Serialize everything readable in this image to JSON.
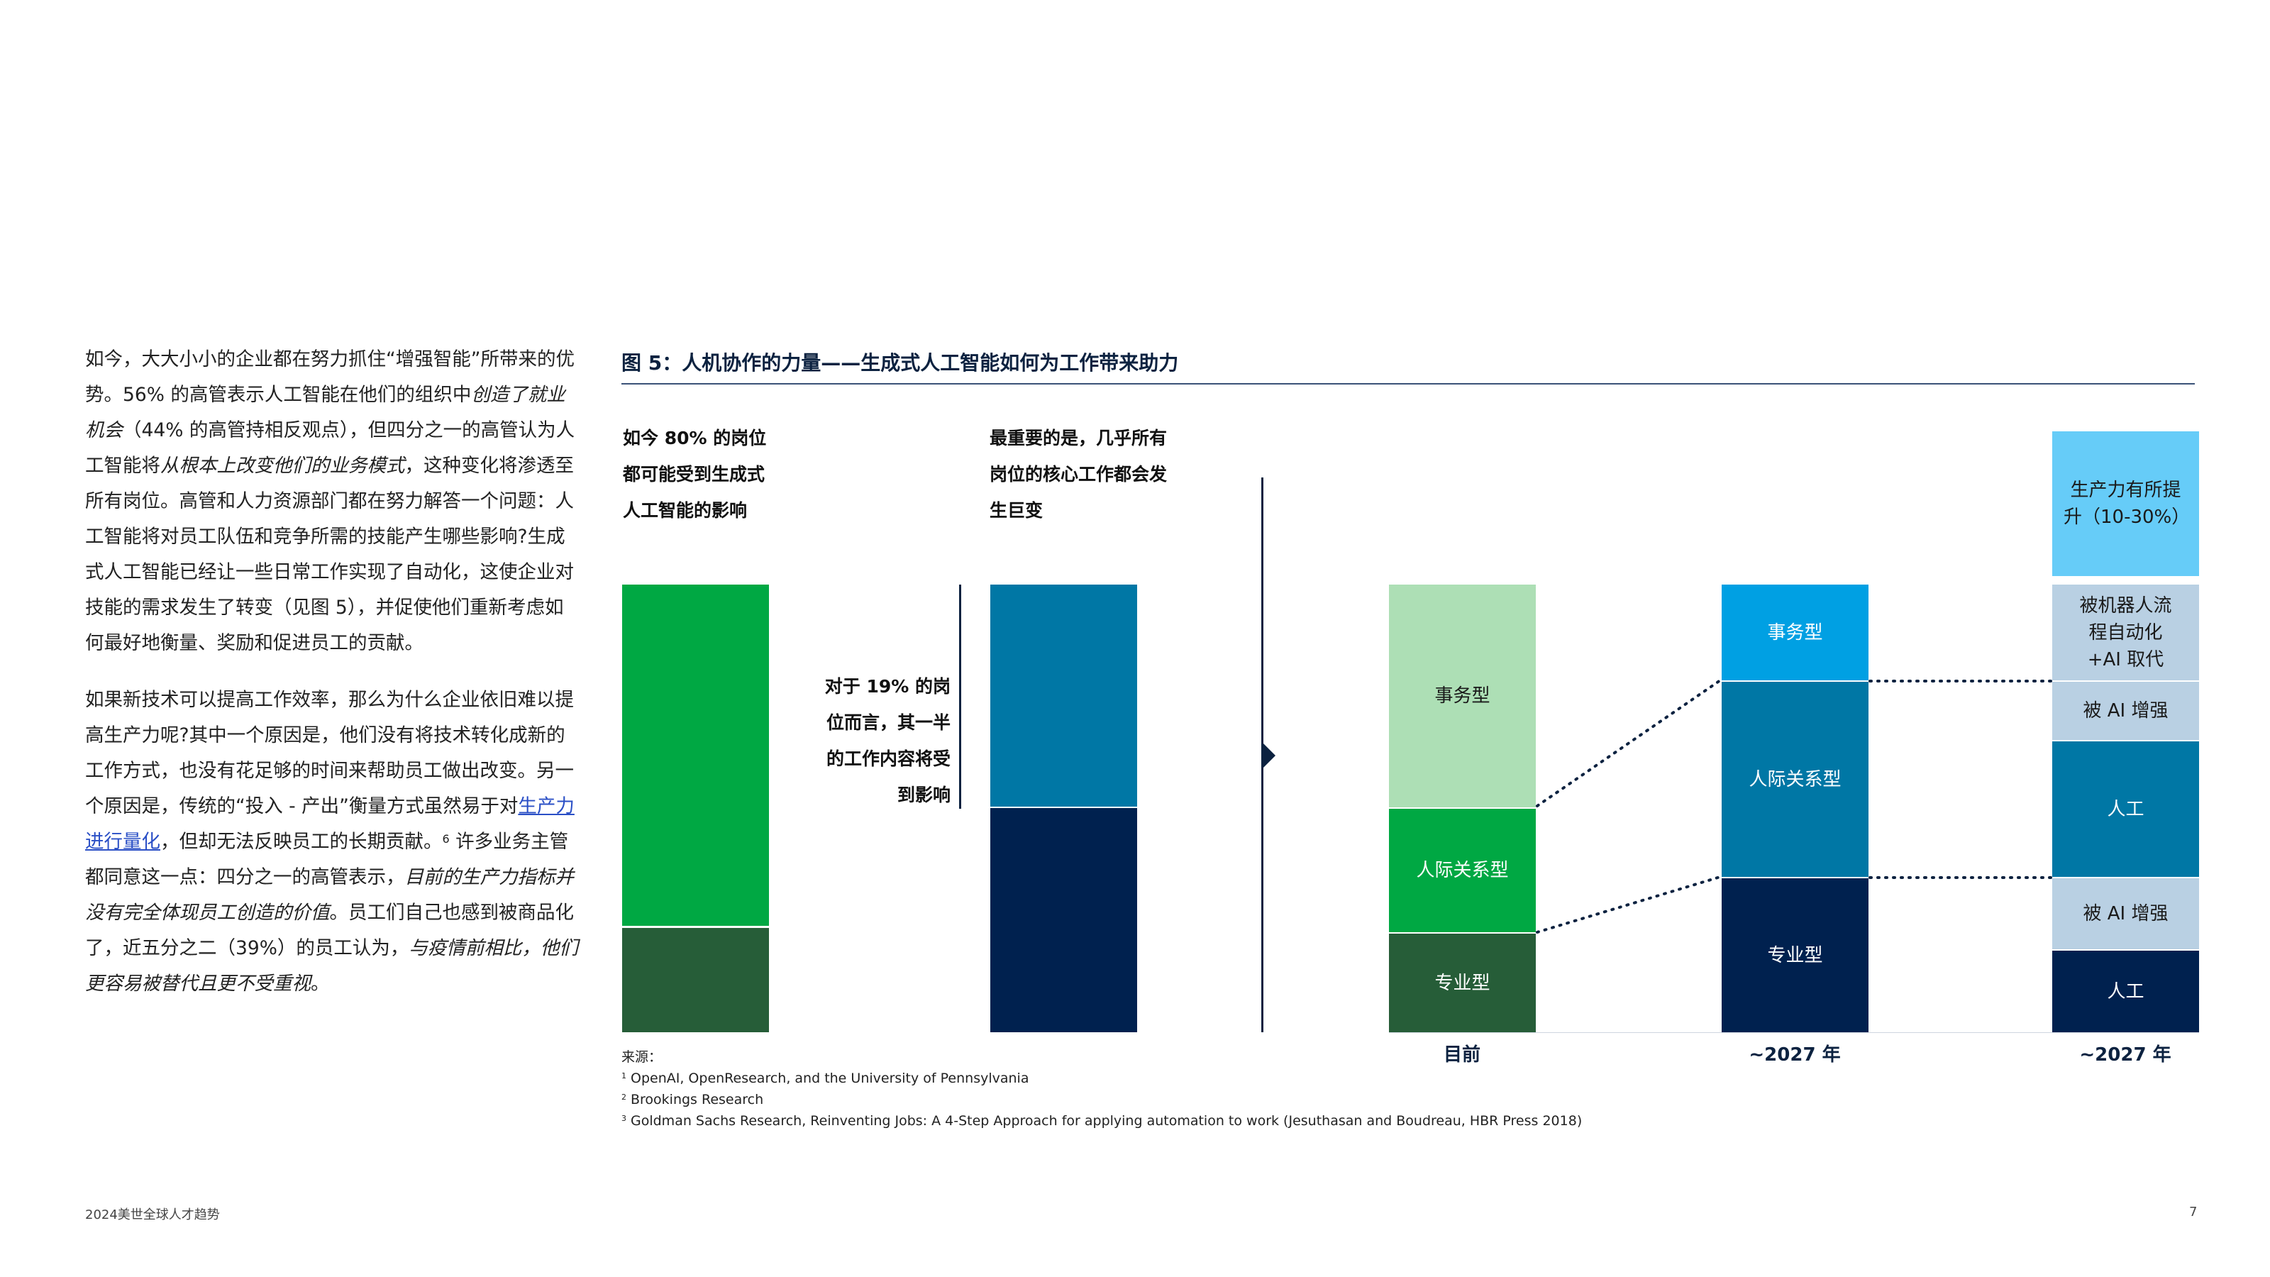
{
  "body_text": {
    "p1": {
      "s1": "如今，大大小小的企业都在努力抓住“增强智能”所带来的优势。56% 的高管表示人工智能在他们的组织中",
      "i1": "创造了就业机会",
      "s2": "（44% 的高管持相反观点），但四分之一的高管认为人工智能将",
      "i2": "从根本上改变他们的业务模式",
      "s3": "，这种变化将渗透至所有岗位。高管和人力资源部门都在努力解答一个问题：人工智能将对员工队伍和竞争所需的技能产生哪些影响?生成式人工智能已经让一些日常工作实现了自动化，这使企业对技能的需求发生了转变（见图 5），并促使他们重新考虑如何最好地衡量、奖励和促进员工的贡献。"
    },
    "p2": {
      "s1": "如果新技术可以提高工作效率，那么为什么企业依旧难以提高生产力呢?其中一个原因是，他们没有将技术转化成新的工作方式，也没有花足够的时间来帮助员工做出改变。另一个原因是，传统的“投入 - 产出”衡量方式虽然易于对",
      "link": "生产力进行量化",
      "s2": "，但却无法反映员工的长期贡献。",
      "sup": "6",
      "s3": " 许多业务主管都同意这一点：四分之一的高管表示，",
      "i1": "目前的生产力指标并没有完全体现员工创造的价值",
      "s4": "。员工们自己也感到被商品化了，近五分之二（39%）的员工认为，",
      "i2": "与疫情前相比，他们更容易被替代且更不受重视",
      "s5": "。"
    }
  },
  "figure": {
    "title": "图 5：人机协作的力量——生成式人工智能如何为工作带来助力",
    "note1": "如今 80% 的岗位都可能受到生成式人工智能的影响",
    "note2": "最重要的是，几乎所有岗位的核心工作都会发生巨变",
    "note3": "对于 19% 的岗位而言，其一半的工作内容将受到影响",
    "bars": {
      "current": {
        "label": "目前",
        "segments": {
          "admin": "事务型",
          "interpersonal": "人际关系型",
          "professional": "专业型"
        }
      },
      "future": {
        "label": "~2027 年",
        "segments": {
          "admin": "事务型",
          "interpersonal": "人际关系型",
          "professional": "专业型"
        }
      },
      "future_detail": {
        "label": "~2027 年",
        "segments": {
          "productivity": "生产力有所提升（10-30%）",
          "rpa": "被机器人流程自动化 +AI 取代",
          "ai_aug_1": "被 AI 增强",
          "human_1": "人工",
          "ai_aug_2": "被 AI 增强",
          "human_2": "人工"
        }
      }
    },
    "colors": {
      "navy": "#00214f",
      "teal": "#0077a5",
      "bright_blue": "#00a0e3",
      "sky": "#66ccf8",
      "pale_blue": "#b9d0e3",
      "green": "#00a843",
      "dark_green": "#265d38",
      "light_green": "#addfb5"
    }
  },
  "sources": {
    "heading": "来源：",
    "items": [
      {
        "num": "1",
        "text": "OpenAI, OpenResearch, and the University of Pennsylvania"
      },
      {
        "num": "2",
        "text": "Brookings Research"
      },
      {
        "num": "3",
        "text": "Goldman Sachs Research, Reinventing Jobs: A 4-Step Approach for applying automation to work (Jesuthasan and Boudreau, HBR Press 2018)"
      }
    ]
  },
  "footer": {
    "left": "2024美世全球人才趋势",
    "page": "7"
  }
}
